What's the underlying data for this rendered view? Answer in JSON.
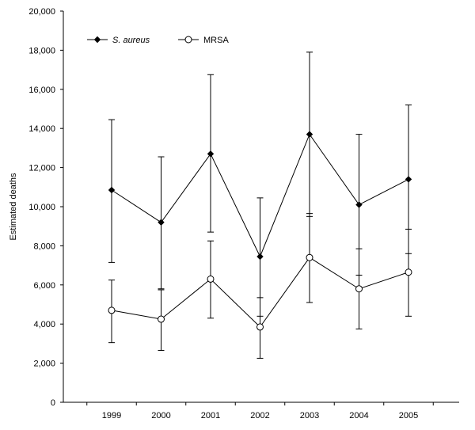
{
  "chart_data": {
    "type": "line",
    "title": "",
    "xlabel": "",
    "ylabel": "Estimated deaths",
    "x": [
      "1999",
      "2000",
      "2001",
      "2002",
      "2003",
      "2004",
      "2005"
    ],
    "ylim": [
      0,
      20000
    ],
    "yticks": [
      0,
      2000,
      4000,
      6000,
      8000,
      10000,
      12000,
      14000,
      16000,
      18000,
      20000
    ],
    "ytick_labels": [
      "0",
      "2,000",
      "4,000",
      "6,000",
      "8,000",
      "10,000",
      "12,000",
      "14,000",
      "16,000",
      "18,000",
      "20,000"
    ],
    "grid": false,
    "legend_position": "top-left",
    "series": [
      {
        "name": "S. aureus",
        "marker": "filled-diamond",
        "color": "#000000",
        "values": [
          10850,
          9200,
          12700,
          7450,
          13700,
          10100,
          11400
        ],
        "error_low": [
          7150,
          5800,
          8700,
          4400,
          9500,
          6500,
          7600
        ],
        "error_high": [
          14450,
          12550,
          16750,
          10450,
          17900,
          13700,
          15200
        ]
      },
      {
        "name": "MRSA",
        "marker": "open-circle",
        "color": "#000000",
        "values": [
          4700,
          4250,
          6300,
          3850,
          7400,
          5800,
          6650
        ],
        "error_low": [
          3050,
          2650,
          4300,
          2250,
          5100,
          3750,
          4400
        ],
        "error_high": [
          6250,
          5750,
          8250,
          5350,
          9650,
          7850,
          8850
        ]
      }
    ]
  }
}
